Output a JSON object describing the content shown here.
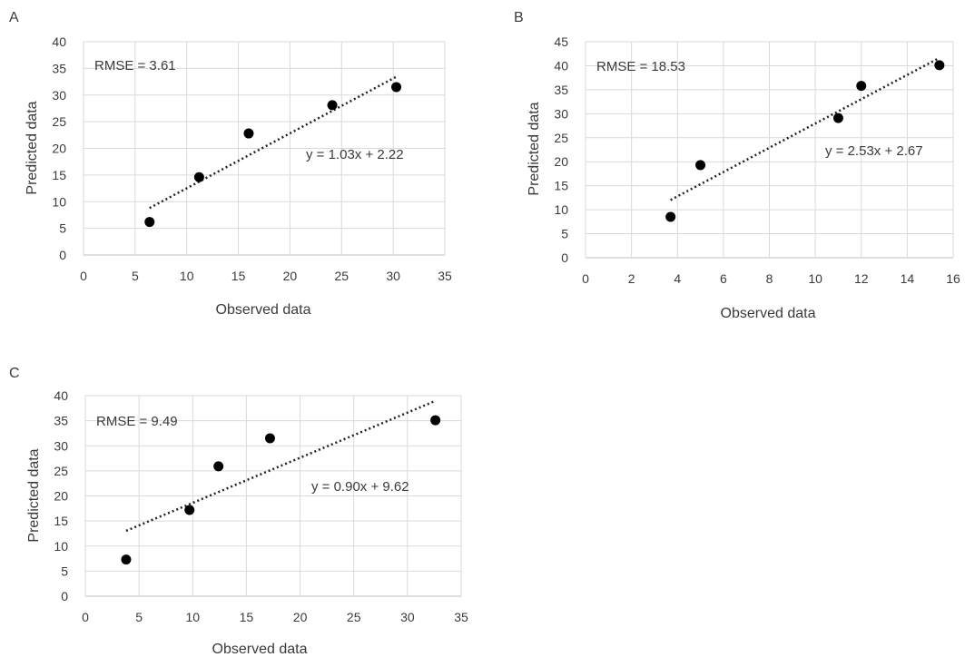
{
  "chart_data": [
    {
      "type": "scatter",
      "panel_label": "A",
      "title": "",
      "xlabel": "Observed data",
      "ylabel": "Predicted data",
      "xlim": [
        0,
        35
      ],
      "ylim": [
        0,
        40
      ],
      "xticks": [
        0,
        5,
        10,
        15,
        20,
        25,
        30,
        35
      ],
      "yticks": [
        0,
        5,
        10,
        15,
        20,
        25,
        30,
        35,
        40
      ],
      "grid": true,
      "legend": "none",
      "marker_color": "#000000",
      "series": [
        {
          "x": [
            6.4,
            11.2,
            16.0,
            24.1,
            30.3
          ],
          "y": [
            6.2,
            14.6,
            22.8,
            28.1,
            31.5
          ]
        }
      ],
      "trendline": {
        "style": "dotted",
        "slope": 1.03,
        "intercept": 2.22,
        "x_range": [
          6.4,
          30.3
        ]
      },
      "annotations": [
        "RMSE = 3.61",
        "y = 1.03x + 2.22"
      ]
    },
    {
      "type": "scatter",
      "panel_label": "B",
      "title": "",
      "xlabel": "Observed data",
      "ylabel": "Predicted data",
      "xlim": [
        0,
        16
      ],
      "ylim": [
        0,
        45
      ],
      "xticks": [
        0,
        2,
        4,
        6,
        8,
        10,
        12,
        14,
        16
      ],
      "yticks": [
        0,
        5,
        10,
        15,
        20,
        25,
        30,
        35,
        40,
        45
      ],
      "grid": true,
      "legend": "none",
      "marker_color": "#000000",
      "series": [
        {
          "x": [
            3.7,
            5.0,
            11.0,
            12.0,
            15.4
          ],
          "y": [
            8.5,
            19.3,
            29.1,
            35.8,
            40.1
          ]
        }
      ],
      "trendline": {
        "style": "dotted",
        "slope": 2.53,
        "intercept": 2.67,
        "x_range": [
          3.7,
          15.4
        ]
      },
      "annotations": [
        "RMSE = 18.53",
        "y = 2.53x + 2.67"
      ]
    },
    {
      "type": "scatter",
      "panel_label": "C",
      "title": "",
      "xlabel": "Observed data",
      "ylabel": "Predicted data",
      "xlim": [
        0,
        35
      ],
      "ylim": [
        0,
        40
      ],
      "xticks": [
        0,
        5,
        10,
        15,
        20,
        25,
        30,
        35
      ],
      "yticks": [
        0,
        5,
        10,
        15,
        20,
        25,
        30,
        35,
        40
      ],
      "grid": true,
      "legend": "none",
      "marker_color": "#000000",
      "series": [
        {
          "x": [
            3.8,
            9.7,
            12.4,
            17.2,
            32.6
          ],
          "y": [
            7.3,
            17.2,
            25.9,
            31.5,
            35.1
          ]
        }
      ],
      "trendline": {
        "style": "dotted",
        "slope": 0.9,
        "intercept": 9.62,
        "x_range": [
          3.8,
          32.6
        ]
      },
      "annotations": [
        "RMSE = 9.49",
        "y = 0.90x + 9.62"
      ]
    }
  ]
}
